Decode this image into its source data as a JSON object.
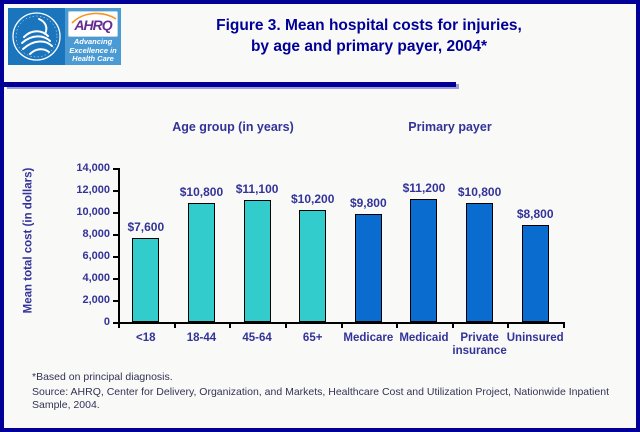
{
  "page": {
    "title_line1": "Figure 3. Mean hospital costs for injuries,",
    "title_line2": "by age and primary payer, 2004*"
  },
  "logo": {
    "ahrq_acronym": "AHRQ",
    "ahrq_tagline": "Advancing\nExcellence in\nHealth Care"
  },
  "colors": {
    "page_border": "#000099",
    "title_text": "#000099",
    "chart_text": "#333399",
    "age_group_bar": "#33cccc",
    "payer_bar": "#0b6cd0",
    "bar_outline": "#000000",
    "hhs_logo_blue": "#1b75bc",
    "ahrq_logo_blue": "#4a9ad4",
    "ahrq_purple": "#662d91"
  },
  "chart_data": {
    "type": "bar",
    "title": "Figure 3. Mean hospital costs for injuries, by age and primary payer, 2004*",
    "ylabel": "Mean total cost (in dollars)",
    "xlabel": "",
    "ylim": [
      0,
      14000
    ],
    "ytick_step": 2000,
    "yticks": [
      "0",
      "2,000",
      "4,000",
      "6,000",
      "8,000",
      "10,000",
      "12,000",
      "14,000"
    ],
    "grid": false,
    "legend": "none",
    "groups": [
      {
        "name": "Age group (in years)",
        "color": "#33cccc",
        "items": [
          {
            "category": "<18",
            "value": 7600,
            "value_label": "$7,600"
          },
          {
            "category": "18-44",
            "value": 10800,
            "value_label": "$10,800"
          },
          {
            "category": "45-64",
            "value": 11100,
            "value_label": "$11,100"
          },
          {
            "category": "65+",
            "value": 10200,
            "value_label": "$10,200"
          }
        ]
      },
      {
        "name": "Primary payer",
        "color": "#0b6cd0",
        "items": [
          {
            "category": "Medicare",
            "value": 9800,
            "value_label": "$9,800"
          },
          {
            "category": "Medicaid",
            "value": 11200,
            "value_label": "$11,200"
          },
          {
            "category": "Private insurance",
            "value": 10800,
            "value_label": "$10,800"
          },
          {
            "category": "Uninsured",
            "value": 8800,
            "value_label": "$8,800"
          }
        ]
      }
    ]
  },
  "footnotes": {
    "note": "*Based on principal diagnosis.",
    "source": "Source: AHRQ, Center for Delivery, Organization, and Markets, Healthcare Cost and Utilization Project, Nationwide Inpatient Sample, 2004."
  }
}
